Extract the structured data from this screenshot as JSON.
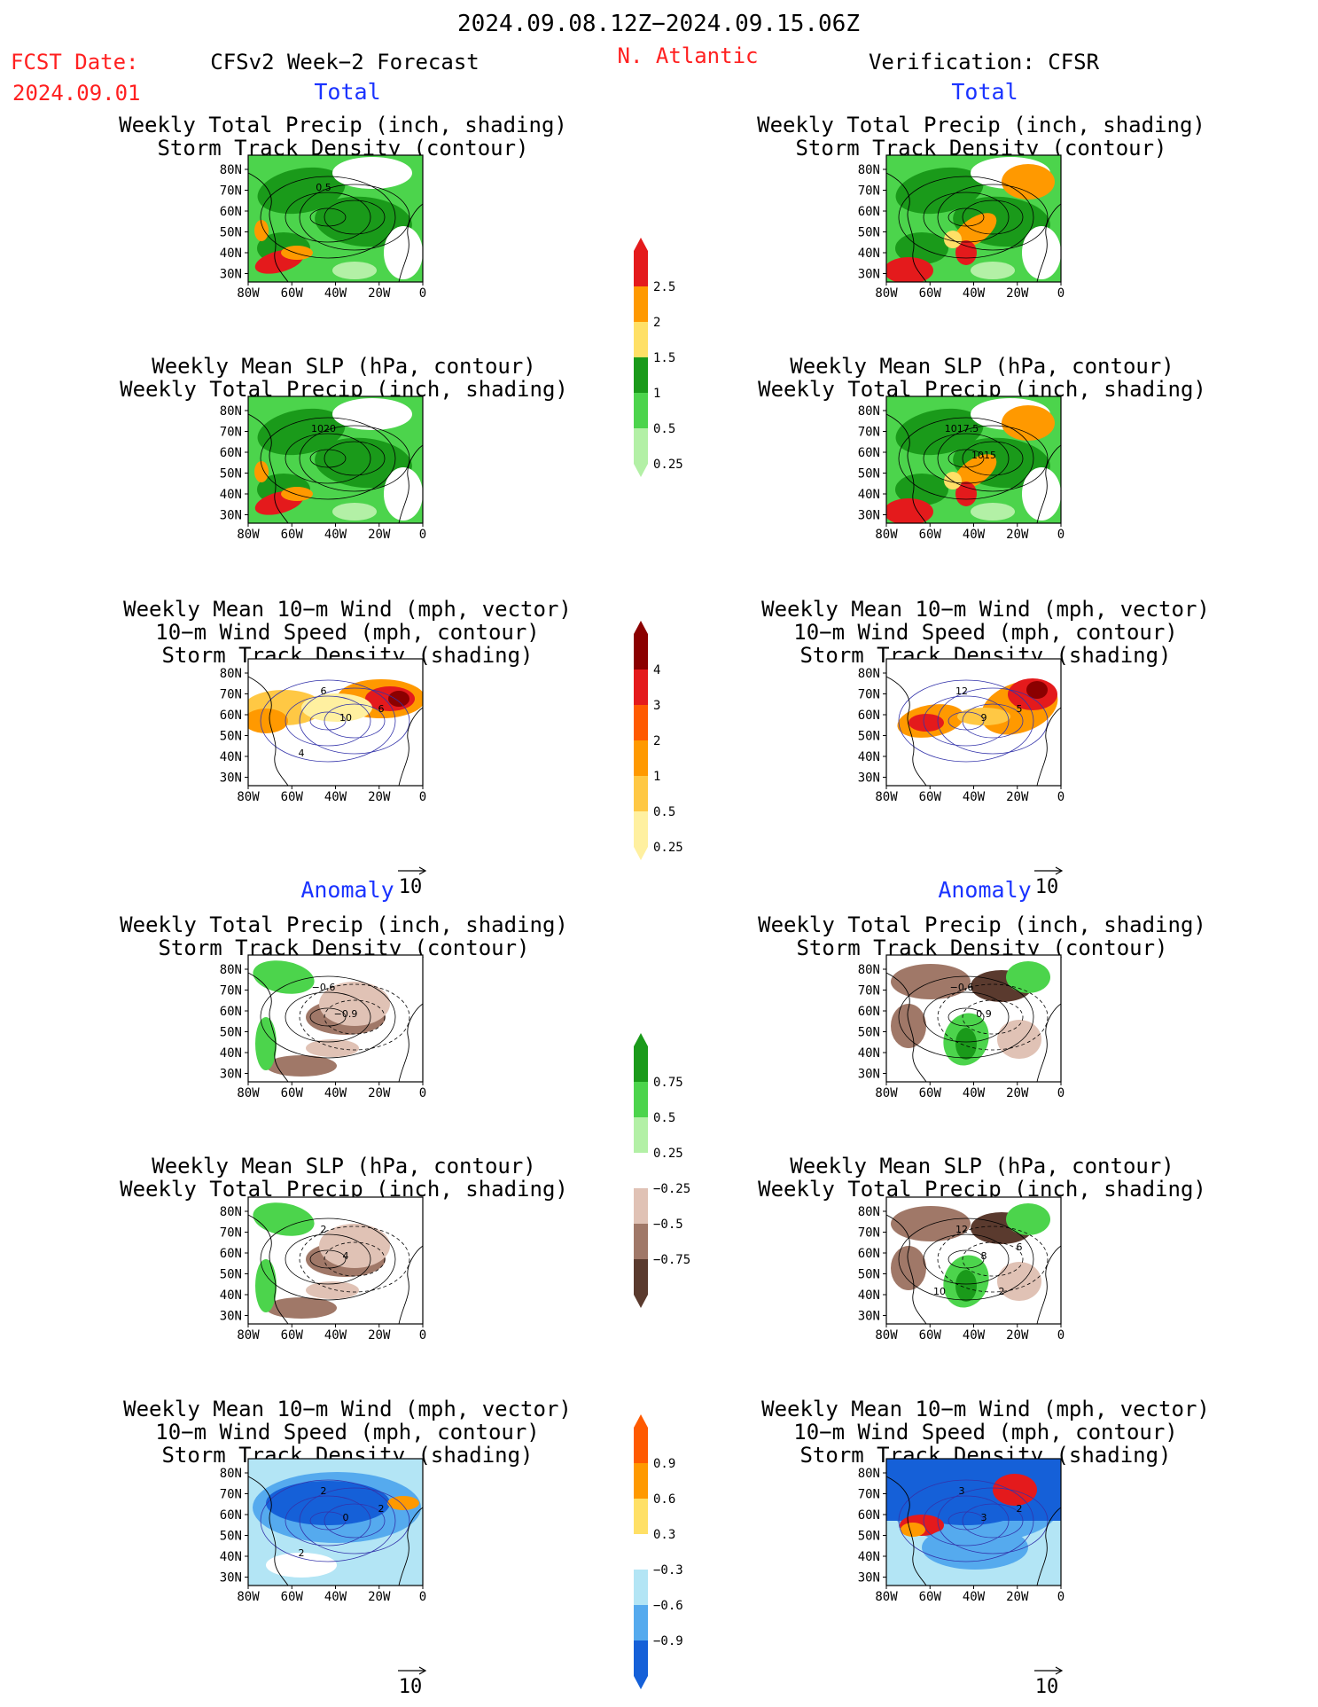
{
  "header": {
    "date_range": "2024.09.08.12Z−2024.09.15.06Z",
    "fcst_label": "FCST Date:",
    "fcst_date": "2024.09.01",
    "model": "CFSv2 Week−2 Forecast",
    "region": "N. Atlantic",
    "verification": "Verification: CFSR"
  },
  "sections": {
    "total": "Total",
    "anomaly": "Anomaly"
  },
  "panel_titles": {
    "precip_storm": [
      "Weekly Total Precip (inch, shading)",
      "Storm Track Density (contour)"
    ],
    "slp_precip": [
      "Weekly Mean SLP (hPa, contour)",
      "Weekly Total Precip (inch, shading)"
    ],
    "wind_storm": [
      "Weekly Mean 10−m Wind (mph, vector)",
      "10−m Wind Speed (mph, contour)",
      "Storm Track Density (shading)"
    ]
  },
  "axes": {
    "lat_ticks": [
      "80N",
      "70N",
      "60N",
      "50N",
      "40N",
      "30N"
    ],
    "lon_ticks": [
      "80W",
      "60W",
      "40W",
      "20W",
      "0"
    ]
  },
  "vector_ref": "10",
  "colorbars": [
    {
      "id": "precip_total",
      "labels": [
        "2.5",
        "2",
        "1.5",
        "1",
        "0.5",
        "0.25"
      ],
      "colors": [
        "#e41a1c",
        "#ff9900",
        "#ffe066",
        "#1a9a1a",
        "#4cd44c",
        "#b3f0a6"
      ]
    },
    {
      "id": "storm_total",
      "labels": [
        "4",
        "3",
        "2",
        "1",
        "0.5",
        "0.25"
      ],
      "colors": [
        "#8b0000",
        "#e41a1c",
        "#ff5a00",
        "#ff9900",
        "#ffc844",
        "#fff0a0"
      ]
    },
    {
      "id": "precip_anom",
      "labels": [
        "0.75",
        "0.5",
        "0.25",
        "−0.25",
        "−0.5",
        "−0.75"
      ],
      "colors": [
        "#1a9a1a",
        "#4cd44c",
        "#b3f0a6",
        "#ffffff",
        "#e0c2b5",
        "#a07868",
        "#5a3a2e"
      ]
    },
    {
      "id": "storm_anom",
      "labels": [
        "0.9",
        "0.6",
        "0.3",
        "−0.3",
        "−0.6",
        "−0.9"
      ],
      "colors": [
        "#ff5a00",
        "#ff9900",
        "#ffe066",
        "#ffffff",
        "#b3e5f5",
        "#55aaee",
        "#1560d8"
      ]
    }
  ],
  "map_annotations": {
    "f_precip_total": [
      "0.5"
    ],
    "f_slp_total": [
      "1020"
    ],
    "v_slp_total": [
      "1017.5",
      "1015"
    ],
    "f_wind_total": [
      "6",
      "10",
      "6",
      "4"
    ],
    "v_wind_total": [
      "12",
      "9",
      "5"
    ],
    "f_precip_anom": [
      "−0.6",
      "−0.9"
    ],
    "v_precip_anom": [
      "−0.6",
      "0.9"
    ],
    "f_slp_anom": [
      "2",
      "4"
    ],
    "v_slp_anom": [
      "12",
      "8",
      "6",
      "10",
      "2"
    ],
    "f_wind_anom": [
      "2",
      "0",
      "2",
      "2"
    ],
    "v_wind_anom": [
      "3",
      "3",
      "2"
    ]
  },
  "colors": {
    "header_red": "#ff2020",
    "section_blue": "#1a33ff"
  }
}
